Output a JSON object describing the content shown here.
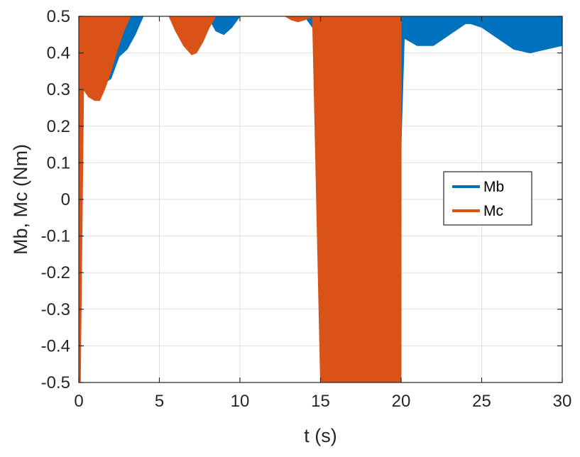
{
  "chart_data": {
    "type": "line",
    "xlabel": "t (s)",
    "ylabel": "Mb, Mc (Nm)",
    "xlim": [
      0,
      30
    ],
    "ylim": [
      -0.5,
      0.5
    ],
    "xticks": [
      0,
      5,
      10,
      15,
      20,
      25,
      30
    ],
    "yticks": [
      0.5,
      0.4,
      0.3,
      0.2,
      0.1,
      0,
      -0.1,
      -0.2,
      -0.3,
      -0.4,
      -0.5
    ],
    "grid": true,
    "legend_position": "right",
    "colors": {
      "Mb": "#0072BD",
      "Mc": "#D95319"
    },
    "series": [
      {
        "name": "Mb",
        "description": "fast oscillation envelope (upper, lower)",
        "t": [
          0.0,
          0.1,
          0.2,
          1.0,
          2.0,
          2.5,
          3.0,
          3.5,
          4.0,
          5.0,
          7.0,
          8.0,
          8.5,
          9.0,
          9.5,
          10.0,
          13.0,
          14.0,
          14.5,
          15.0,
          20.0,
          20.2,
          21.0,
          22.0,
          23.0,
          24.0,
          24.3,
          25.0,
          26.0,
          27.0,
          28.0,
          29.0,
          30.0
        ],
        "upper": [
          -0.5,
          0.5,
          0.5,
          0.5,
          0.5,
          0.5,
          0.5,
          0.5,
          0.5,
          0.5,
          0.5,
          0.5,
          0.5,
          0.5,
          0.5,
          0.5,
          0.5,
          0.5,
          0.5,
          0.5,
          0.5,
          0.5,
          0.5,
          0.5,
          0.5,
          0.5,
          0.5,
          0.5,
          0.5,
          0.5,
          0.5,
          0.5,
          0.5
        ],
        "lower": [
          -0.5,
          0.3,
          0.3,
          0.3,
          0.33,
          0.39,
          0.41,
          0.45,
          0.5,
          0.5,
          0.5,
          0.5,
          0.46,
          0.45,
          0.47,
          0.5,
          0.5,
          0.5,
          0.47,
          0.44,
          0.15,
          0.44,
          0.42,
          0.42,
          0.45,
          0.48,
          0.48,
          0.47,
          0.44,
          0.41,
          0.4,
          0.41,
          0.42
        ]
      },
      {
        "name": "Mc",
        "description": "fast oscillation envelope (upper, lower)",
        "t": [
          0.0,
          0.1,
          0.3,
          0.6,
          1.0,
          1.3,
          1.6,
          2.0,
          2.4,
          2.8,
          3.2,
          3.3,
          5.6,
          6.0,
          6.5,
          7.0,
          7.3,
          7.7,
          8.1,
          8.5,
          8.6,
          12.8,
          13.2,
          13.6,
          14.0,
          14.5,
          15.0,
          20.0,
          20.01,
          30.0
        ],
        "upper": [
          0.5,
          0.5,
          0.5,
          0.5,
          0.5,
          0.5,
          0.5,
          0.5,
          0.5,
          0.5,
          0.5,
          0.5,
          0.5,
          0.5,
          0.5,
          0.5,
          0.5,
          0.5,
          0.5,
          0.5,
          0.5,
          0.5,
          0.5,
          0.5,
          0.5,
          0.5,
          0.5,
          0.5,
          0.5,
          0.5
        ],
        "lower": [
          -0.5,
          -0.5,
          0.3,
          0.28,
          0.27,
          0.27,
          0.3,
          0.35,
          0.41,
          0.46,
          0.5,
          0.5,
          0.5,
          0.46,
          0.42,
          0.395,
          0.4,
          0.43,
          0.47,
          0.5,
          0.5,
          0.5,
          0.49,
          0.485,
          0.49,
          0.5,
          -0.5,
          -0.5,
          0.5,
          0.5
        ]
      }
    ]
  }
}
